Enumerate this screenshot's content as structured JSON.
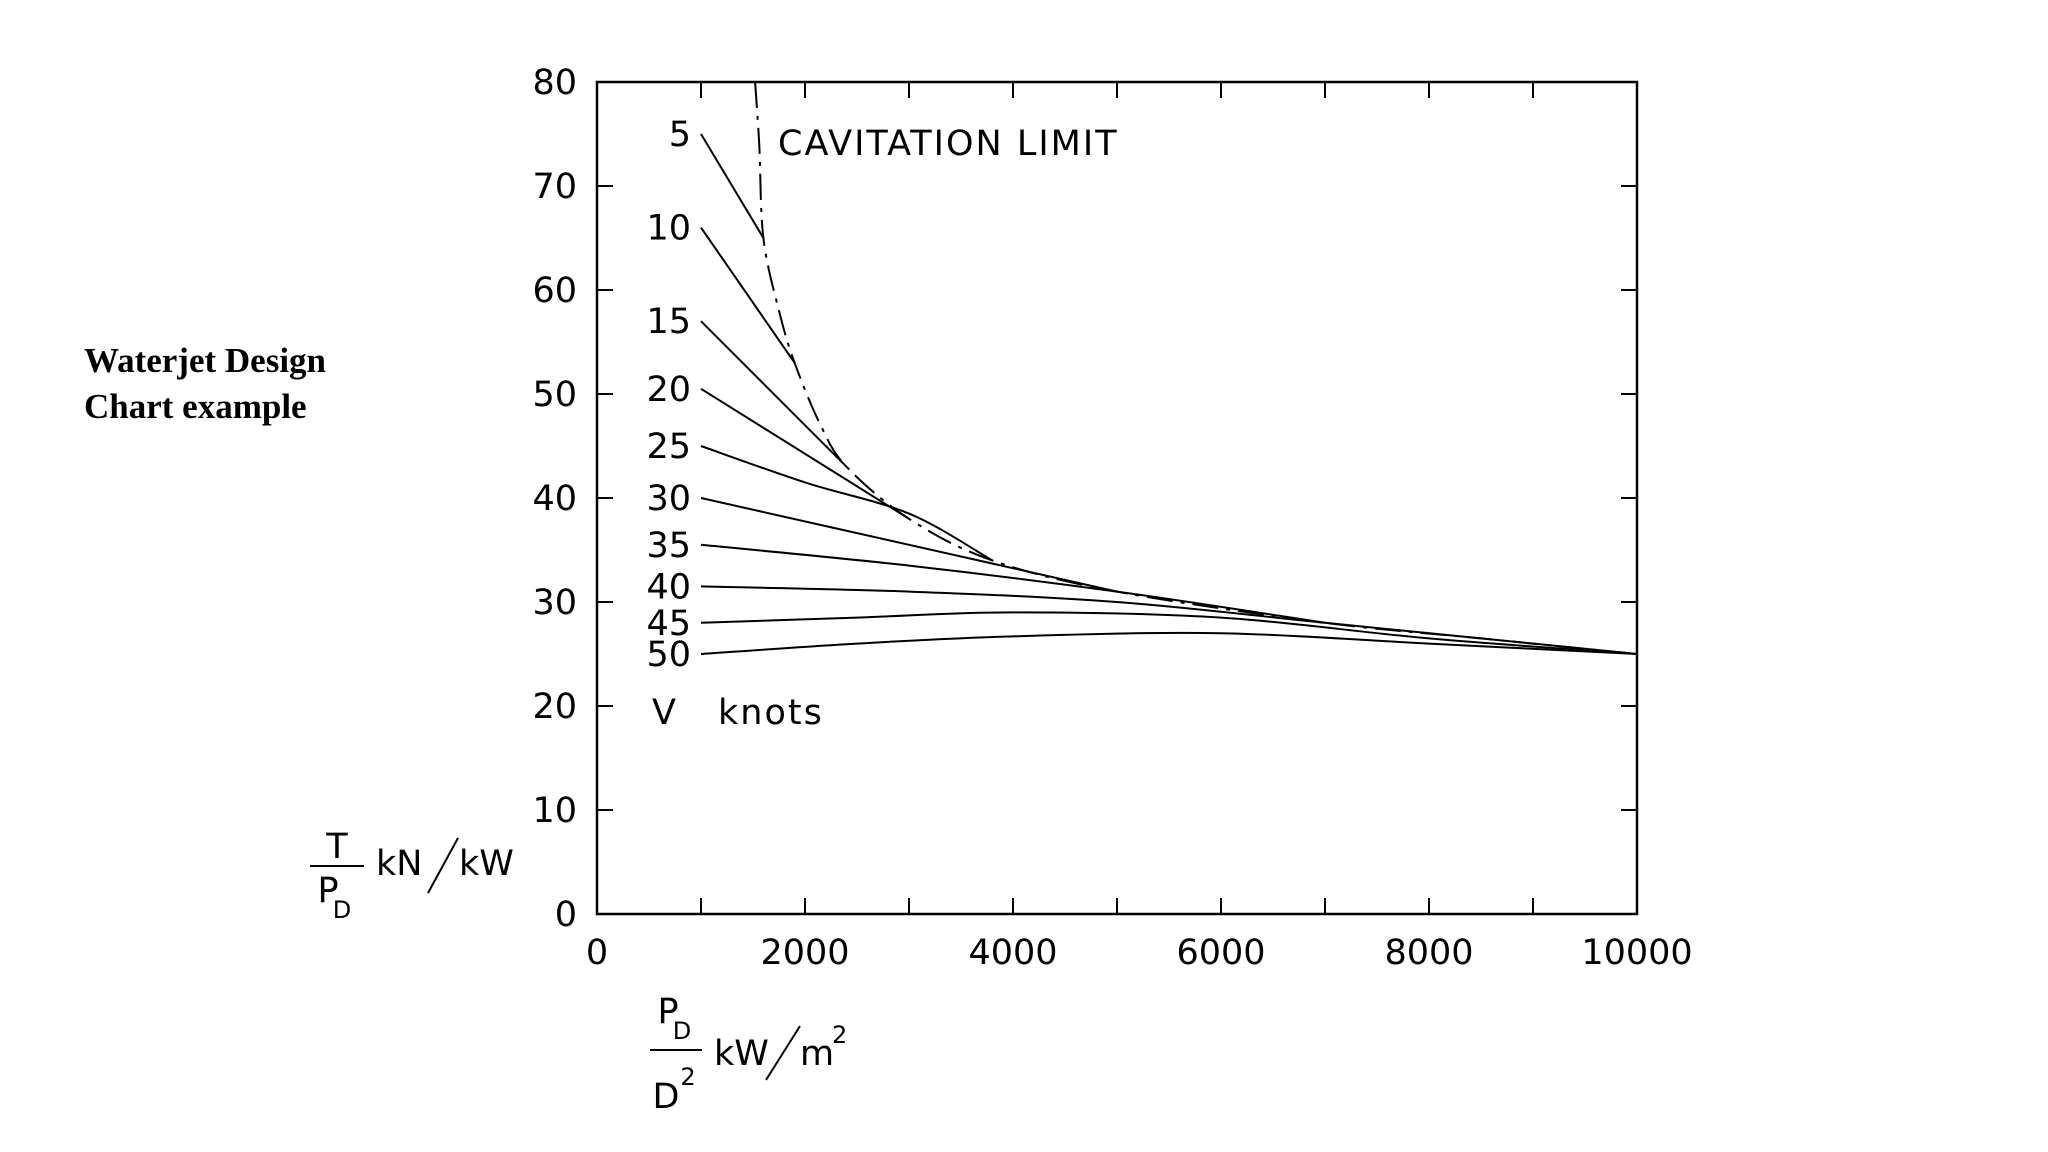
{
  "slide": {
    "title_line1": "Waterjet Design",
    "title_line2": "Chart example"
  },
  "chart_data": {
    "type": "line",
    "title": "",
    "xlim": [
      0,
      10000
    ],
    "ylim": [
      0,
      80
    ],
    "x_ticks": [
      0,
      2000,
      4000,
      6000,
      8000,
      10000
    ],
    "y_ticks": [
      0,
      10,
      20,
      30,
      40,
      50,
      60,
      70,
      80
    ],
    "grid": false,
    "xlabel": {
      "num": "P",
      "num_sub": "D",
      "den": "D",
      "den_sup": "2",
      "unit": "kW",
      "unit_den": "m",
      "unit_sup": "2"
    },
    "ylabel": {
      "num": "T",
      "den": "P",
      "den_sub": "D",
      "unit": "kN",
      "unit_den": "kW"
    },
    "annotations": {
      "cavitation": "CAVITATION  LIMIT",
      "speed_unit_v": "V",
      "speed_unit_knots": "knots"
    },
    "series": [
      {
        "name": "5",
        "points": [
          [
            1000,
            75
          ],
          [
            1600,
            65
          ]
        ]
      },
      {
        "name": "10",
        "points": [
          [
            1000,
            66
          ],
          [
            1900,
            53
          ]
        ]
      },
      {
        "name": "15",
        "points": [
          [
            1000,
            57
          ],
          [
            2400,
            43
          ]
        ]
      },
      {
        "name": "20",
        "points": [
          [
            1000,
            50.5
          ],
          [
            3000,
            38
          ]
        ]
      },
      {
        "name": "25",
        "points": [
          [
            1000,
            45
          ],
          [
            2000,
            41.5
          ],
          [
            3000,
            38.5
          ],
          [
            3800,
            34
          ]
        ]
      },
      {
        "name": "30",
        "points": [
          [
            1000,
            40
          ],
          [
            3000,
            35.5
          ],
          [
            5000,
            31
          ]
        ]
      },
      {
        "name": "35",
        "points": [
          [
            1000,
            35.5
          ],
          [
            3000,
            33.5
          ],
          [
            5000,
            31
          ],
          [
            7000,
            28
          ]
        ]
      },
      {
        "name": "40",
        "points": [
          [
            1000,
            31.5
          ],
          [
            3000,
            31
          ],
          [
            5000,
            30
          ],
          [
            7000,
            28
          ],
          [
            8500,
            26.5
          ],
          [
            10000,
            25
          ]
        ]
      },
      {
        "name": "45",
        "points": [
          [
            1000,
            28
          ],
          [
            2500,
            28.5
          ],
          [
            4000,
            29
          ],
          [
            6000,
            28.5
          ],
          [
            8000,
            26.5
          ],
          [
            10000,
            25
          ]
        ]
      },
      {
        "name": "50",
        "points": [
          [
            1000,
            25
          ],
          [
            2500,
            26
          ],
          [
            4000,
            26.7
          ],
          [
            6000,
            27
          ],
          [
            8000,
            26
          ],
          [
            10000,
            25
          ]
        ]
      }
    ],
    "cavitation_limit": {
      "name": "CAVITATION  LIMIT",
      "points": [
        [
          1520,
          80
        ],
        [
          1560,
          74
        ],
        [
          1600,
          65
        ],
        [
          1750,
          58
        ],
        [
          1900,
          53
        ],
        [
          2150,
          47
        ],
        [
          2400,
          43
        ],
        [
          3000,
          38
        ],
        [
          3800,
          34
        ],
        [
          5000,
          31
        ],
        [
          7000,
          28
        ],
        [
          8500,
          26.5
        ],
        [
          10000,
          25
        ]
      ]
    }
  }
}
